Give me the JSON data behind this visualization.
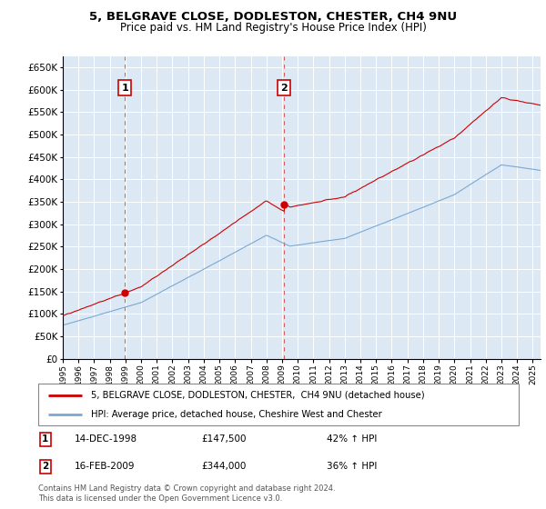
{
  "title1": "5, BELGRAVE CLOSE, DODLESTON, CHESTER, CH4 9NU",
  "title2": "Price paid vs. HM Land Registry's House Price Index (HPI)",
  "legend_label1": "5, BELGRAVE CLOSE, DODLESTON, CHESTER,  CH4 9NU (detached house)",
  "legend_label2": "HPI: Average price, detached house, Cheshire West and Chester",
  "sale1_date": "14-DEC-1998",
  "sale1_price": 147500,
  "sale1_label": "42% ↑ HPI",
  "sale2_date": "16-FEB-2009",
  "sale2_price": 344000,
  "sale2_label": "36% ↑ HPI",
  "footer": "Contains HM Land Registry data © Crown copyright and database right 2024.\nThis data is licensed under the Open Government Licence v3.0.",
  "red_color": "#cc0000",
  "blue_color": "#7aa8d2",
  "bg_color": "#dce9f5",
  "grid_color": "#ffffff",
  "box_color": "#cc0000",
  "ylim_min": 0,
  "ylim_max": 675000,
  "xlim_min": 1995,
  "xlim_max": 2025.5
}
